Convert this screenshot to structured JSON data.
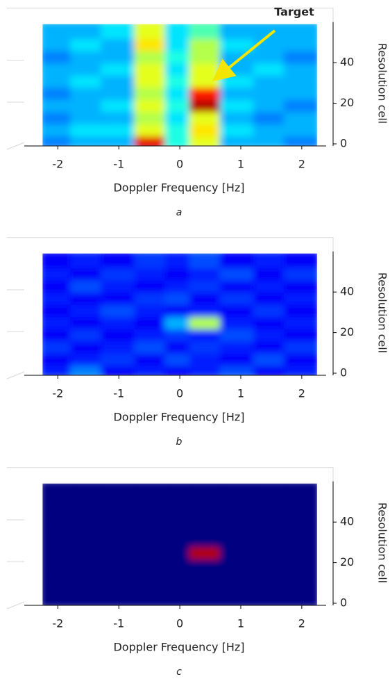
{
  "chart_data": [
    {
      "type": "heatmap",
      "xlabel": "Doppler Frequency [Hz]",
      "ylabel": "Resolution cell",
      "caption": "a",
      "annotation": "Target",
      "xlim": [
        -2.55,
        2.4
      ],
      "ylim": [
        0,
        60
      ],
      "xticks": [
        -2,
        -1,
        0,
        1,
        2
      ],
      "yticks": [
        0,
        20,
        40
      ],
      "x": [
        -2,
        -1.5,
        -1,
        -0.4,
        0,
        0.4,
        1,
        1.5,
        2
      ],
      "y": [
        2,
        8,
        14,
        20,
        26,
        32,
        38,
        44,
        50,
        56
      ],
      "z": [
        [
          0.25,
          0.3,
          0.3,
          0.9,
          0.4,
          0.6,
          0.3,
          0.3,
          0.25
        ],
        [
          0.3,
          0.35,
          0.35,
          0.6,
          0.4,
          0.65,
          0.35,
          0.3,
          0.3
        ],
        [
          0.25,
          0.3,
          0.3,
          0.55,
          0.35,
          0.6,
          0.3,
          0.25,
          0.3
        ],
        [
          0.3,
          0.3,
          0.35,
          0.6,
          0.4,
          0.95,
          0.35,
          0.3,
          0.25
        ],
        [
          0.25,
          0.3,
          0.3,
          0.55,
          0.35,
          0.85,
          0.3,
          0.3,
          0.3
        ],
        [
          0.3,
          0.35,
          0.3,
          0.6,
          0.4,
          0.6,
          0.35,
          0.3,
          0.3
        ],
        [
          0.3,
          0.3,
          0.35,
          0.6,
          0.35,
          0.6,
          0.3,
          0.35,
          0.3
        ],
        [
          0.25,
          0.3,
          0.3,
          0.55,
          0.4,
          0.55,
          0.3,
          0.3,
          0.25
        ],
        [
          0.3,
          0.35,
          0.3,
          0.65,
          0.35,
          0.55,
          0.35,
          0.3,
          0.3
        ],
        [
          0.3,
          0.3,
          0.35,
          0.6,
          0.35,
          0.45,
          0.3,
          0.3,
          0.3
        ]
      ]
    },
    {
      "type": "heatmap",
      "xlabel": "Doppler Frequency [Hz]",
      "ylabel": "Resolution cell",
      "caption": "b",
      "xlim": [
        -2.55,
        2.4
      ],
      "ylim": [
        0,
        60
      ],
      "xticks": [
        -2,
        -1,
        0,
        1,
        2
      ],
      "yticks": [
        0,
        20,
        40
      ],
      "x": [
        -2,
        -1.5,
        -1,
        -0.4,
        0,
        0.4,
        1,
        1.5,
        2
      ],
      "y": [
        2,
        8,
        14,
        20,
        26,
        32,
        38,
        44,
        50,
        56
      ],
      "z": [
        [
          0.15,
          0.25,
          0.12,
          0.15,
          0.12,
          0.15,
          0.2,
          0.12,
          0.15
        ],
        [
          0.12,
          0.15,
          0.18,
          0.12,
          0.2,
          0.15,
          0.12,
          0.2,
          0.12
        ],
        [
          0.18,
          0.12,
          0.15,
          0.2,
          0.12,
          0.18,
          0.15,
          0.12,
          0.18
        ],
        [
          0.12,
          0.18,
          0.12,
          0.15,
          0.18,
          0.15,
          0.2,
          0.15,
          0.12
        ],
        [
          0.15,
          0.12,
          0.15,
          0.12,
          0.3,
          0.55,
          0.15,
          0.12,
          0.15
        ],
        [
          0.12,
          0.15,
          0.2,
          0.15,
          0.12,
          0.15,
          0.12,
          0.18,
          0.12
        ],
        [
          0.15,
          0.12,
          0.12,
          0.18,
          0.2,
          0.12,
          0.18,
          0.12,
          0.15
        ],
        [
          0.12,
          0.2,
          0.15,
          0.12,
          0.15,
          0.18,
          0.12,
          0.15,
          0.12
        ],
        [
          0.15,
          0.12,
          0.18,
          0.15,
          0.12,
          0.15,
          0.2,
          0.12,
          0.18
        ],
        [
          0.12,
          0.15,
          0.12,
          0.18,
          0.15,
          0.2,
          0.12,
          0.15,
          0.12
        ]
      ]
    },
    {
      "type": "heatmap",
      "xlabel": "Doppler Frequency [Hz]",
      "ylabel": "Resolution cell",
      "caption": "c",
      "xlim": [
        -2.55,
        2.4
      ],
      "ylim": [
        0,
        60
      ],
      "xticks": [
        -2,
        -1,
        0,
        1,
        2
      ],
      "yticks": [
        0,
        20,
        40
      ],
      "x": [
        -2,
        -1.5,
        -1,
        -0.4,
        0,
        0.4,
        1,
        1.5,
        2
      ],
      "y": [
        2,
        8,
        14,
        20,
        26,
        32,
        38,
        44,
        50,
        56
      ],
      "z": [
        [
          0,
          0,
          0,
          0,
          0,
          0,
          0,
          0,
          0
        ],
        [
          0,
          0,
          0,
          0,
          0,
          0,
          0,
          0,
          0
        ],
        [
          0,
          0,
          0,
          0,
          0,
          0,
          0,
          0,
          0
        ],
        [
          0,
          0,
          0,
          0,
          0,
          0,
          0,
          0,
          0
        ],
        [
          0,
          0,
          0,
          0,
          0,
          0.95,
          0,
          0,
          0
        ],
        [
          0,
          0,
          0,
          0,
          0,
          0,
          0,
          0,
          0
        ],
        [
          0,
          0,
          0,
          0,
          0,
          0,
          0,
          0,
          0
        ],
        [
          0,
          0,
          0,
          0,
          0,
          0,
          0,
          0,
          0
        ],
        [
          0,
          0,
          0,
          0,
          0,
          0,
          0,
          0,
          0
        ],
        [
          0,
          0,
          0,
          0,
          0,
          0,
          0,
          0,
          0
        ]
      ]
    }
  ]
}
